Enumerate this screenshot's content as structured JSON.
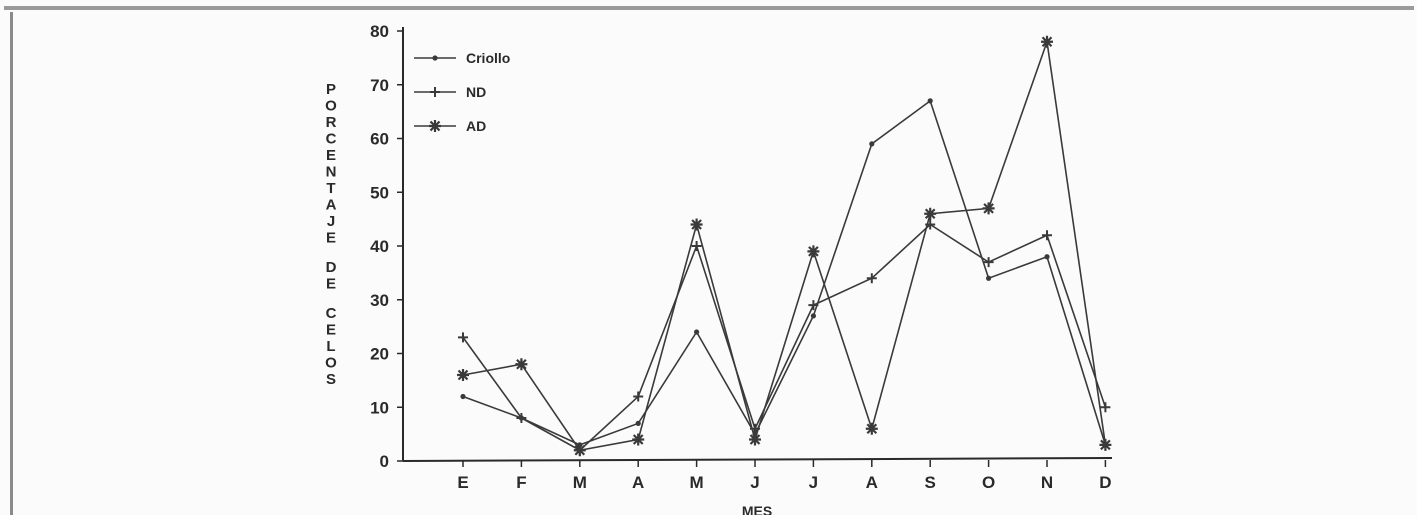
{
  "chart_data": {
    "type": "line",
    "xlabel": "MES",
    "ylabel": "PORCENTAJE DE CELOS",
    "categories": [
      "E",
      "F",
      "M",
      "A",
      "M",
      "J",
      "J",
      "A",
      "S",
      "O",
      "N",
      "D"
    ],
    "ylim": [
      0,
      80
    ],
    "yticks": [
      0,
      10,
      20,
      30,
      40,
      50,
      60,
      70,
      80
    ],
    "grid": false,
    "legend_position": "top-left",
    "series": [
      {
        "name": "Criollo",
        "marker": "dot",
        "values": [
          12,
          8,
          3,
          7,
          24,
          5,
          27,
          59,
          67,
          34,
          38,
          3
        ]
      },
      {
        "name": "ND",
        "marker": "plus",
        "values": [
          23,
          8,
          2,
          12,
          40,
          6,
          29,
          34,
          44,
          37,
          42,
          10
        ]
      },
      {
        "name": "AD",
        "marker": "asterisk",
        "values": [
          16,
          18,
          2,
          4,
          44,
          4,
          39,
          6,
          46,
          47,
          78,
          3
        ]
      }
    ],
    "colors": {
      "line": "#3a3a3a",
      "axis": "#2a2a2a"
    }
  }
}
